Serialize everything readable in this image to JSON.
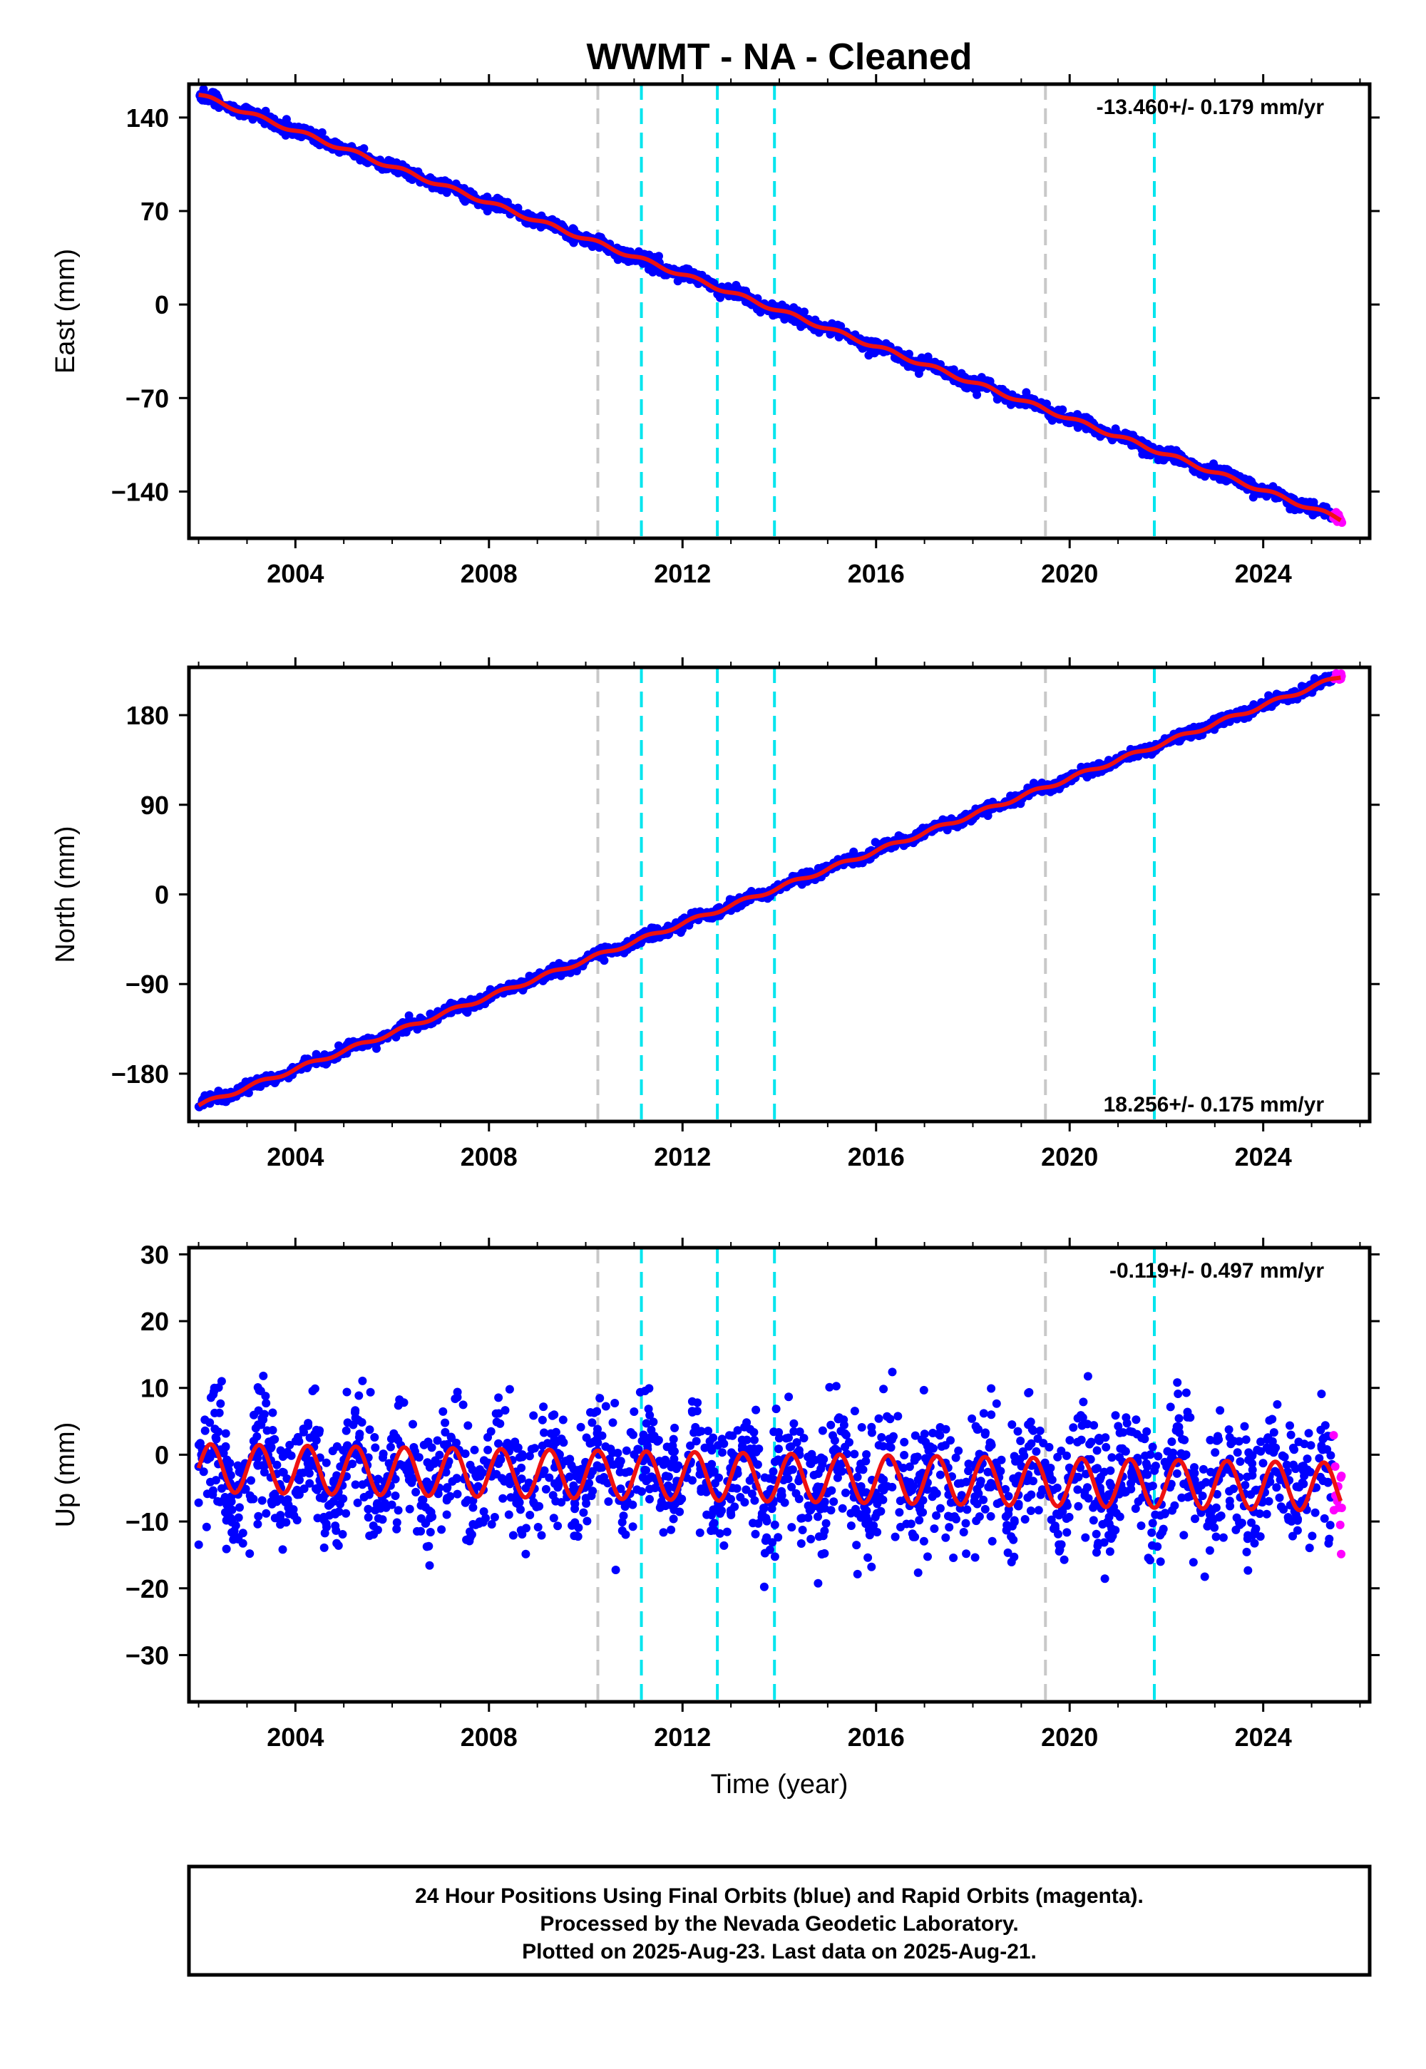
{
  "title": "WWMT  - NA - Cleaned",
  "colors": {
    "final_orbits": "#0000ff",
    "rapid_orbits": "#ff00ff",
    "model": "#ee1111",
    "equipment_change": "#00e5ee",
    "earthquake_offset": "#c8c8c8"
  },
  "chart_data": [
    {
      "type": "scatter",
      "name": "east",
      "ylabel": "East (mm)",
      "xlabel": "",
      "xlim": [
        2001.8,
        2026.2
      ],
      "ylim": [
        -175,
        165
      ],
      "yticks": [
        140,
        70,
        0,
        -70,
        -140
      ],
      "ytick_labels": [
        "140",
        "70",
        "0",
        "−70",
        "−140"
      ],
      "xticks": [
        2004,
        2008,
        2012,
        2016,
        2020,
        2024
      ],
      "xtick_labels": [
        "2004",
        "2008",
        "2012",
        "2016",
        "2020",
        "2024"
      ],
      "rate_text": "-13.460+/- 0.179 mm/yr",
      "rate_position": "top-right",
      "model": {
        "t0": 2002.0,
        "y0": 157,
        "slope": -13.46,
        "annual_amp": 1.5
      },
      "scatter_sigma": 2.2,
      "gray_lines": [
        2010.25,
        2019.5
      ],
      "cyan_lines": [
        2011.15,
        2012.72,
        2013.9,
        2021.75
      ],
      "data_range": [
        2002.0,
        2025.6
      ],
      "rapid_range": [
        2025.45,
        2025.64
      ]
    },
    {
      "type": "scatter",
      "name": "north",
      "ylabel": "North (mm)",
      "xlabel": "",
      "xlim": [
        2001.8,
        2026.2
      ],
      "ylim": [
        -228,
        228
      ],
      "yticks": [
        180,
        90,
        0,
        -90,
        -180
      ],
      "ytick_labels": [
        "180",
        "90",
        "0",
        "−90",
        "−180"
      ],
      "xticks": [
        2004,
        2008,
        2012,
        2016,
        2020,
        2024
      ],
      "xtick_labels": [
        "2004",
        "2008",
        "2012",
        "2016",
        "2020",
        "2024"
      ],
      "rate_text": "18.256+/- 0.175 mm/yr",
      "rate_position": "bottom-right",
      "model": {
        "t0": 2002.0,
        "y0": -212,
        "slope": 18.256,
        "annual_amp": 2.0
      },
      "scatter_sigma": 2.6,
      "gray_lines": [
        2010.25,
        2019.5
      ],
      "cyan_lines": [
        2011.15,
        2012.72,
        2013.9,
        2021.75
      ],
      "data_range": [
        2002.0,
        2025.6
      ],
      "rapid_range": [
        2025.45,
        2025.64
      ]
    },
    {
      "type": "scatter",
      "name": "up",
      "ylabel": "Up (mm)",
      "xlabel": "Time (year)",
      "xlim": [
        2001.8,
        2026.2
      ],
      "ylim": [
        -37,
        31
      ],
      "yticks": [
        30,
        20,
        10,
        0,
        -10,
        -20,
        -30
      ],
      "ytick_labels": [
        "30",
        "20",
        "10",
        "0",
        "−10",
        "−20",
        "−30"
      ],
      "xticks": [
        2004,
        2008,
        2012,
        2016,
        2020,
        2024
      ],
      "xtick_labels": [
        "2004",
        "2008",
        "2012",
        "2016",
        "2020",
        "2024"
      ],
      "rate_text": "-0.119+/- 0.497 mm/yr",
      "rate_position": "top-right",
      "model": {
        "t0": 2002.0,
        "y0": -2,
        "slope": -0.119,
        "annual_amp": 3.6
      },
      "scatter_sigma": 4.6,
      "gray_lines": [
        2010.25,
        2019.5
      ],
      "cyan_lines": [
        2011.15,
        2012.72,
        2013.9,
        2021.75
      ],
      "data_range": [
        2002.0,
        2025.6
      ],
      "rapid_range": [
        2025.45,
        2025.64
      ]
    }
  ],
  "footer": {
    "line1": "24 Hour Positions Using Final Orbits (blue) and Rapid Orbits (magenta).",
    "line2": "Processed by the Nevada Geodetic Laboratory.",
    "line3": "Plotted on 2025-Aug-23. Last data on 2025-Aug-21."
  }
}
